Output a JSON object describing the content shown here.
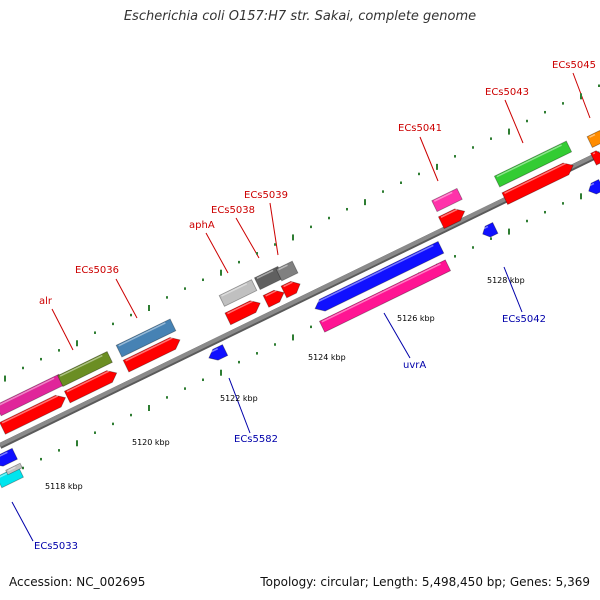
{
  "title": "Escherichia coli O157:H7 str. Sakai, complete genome",
  "footer": {
    "accession": "Accession: NC_002695",
    "summary": "Topology: circular; Length: 5,498,450 bp; Genes: 5,369"
  },
  "colors": {
    "backbone": "#8a8a8a",
    "tick": "#2e7d32",
    "cds": "#ff0000",
    "reverse_cds": "#1010ff",
    "label_forward": "#cc0000",
    "label_reverse": "#0000aa"
  },
  "ticks": [
    {
      "text": "5118 kbp"
    },
    {
      "text": "5120 kbp"
    },
    {
      "text": "5122 kbp"
    },
    {
      "text": "5124 kbp"
    },
    {
      "text": "5126 kbp"
    },
    {
      "text": "5128 kbp"
    }
  ],
  "forward_labels": [
    "alr",
    "ECs5036",
    "aphA",
    "ECs5038",
    "ECs5039",
    "ECs5041",
    "ECs5043",
    "ECs5045"
  ],
  "reverse_labels": [
    "ECs5033",
    "ECs5582",
    "uvrA",
    "ECs5042"
  ]
}
